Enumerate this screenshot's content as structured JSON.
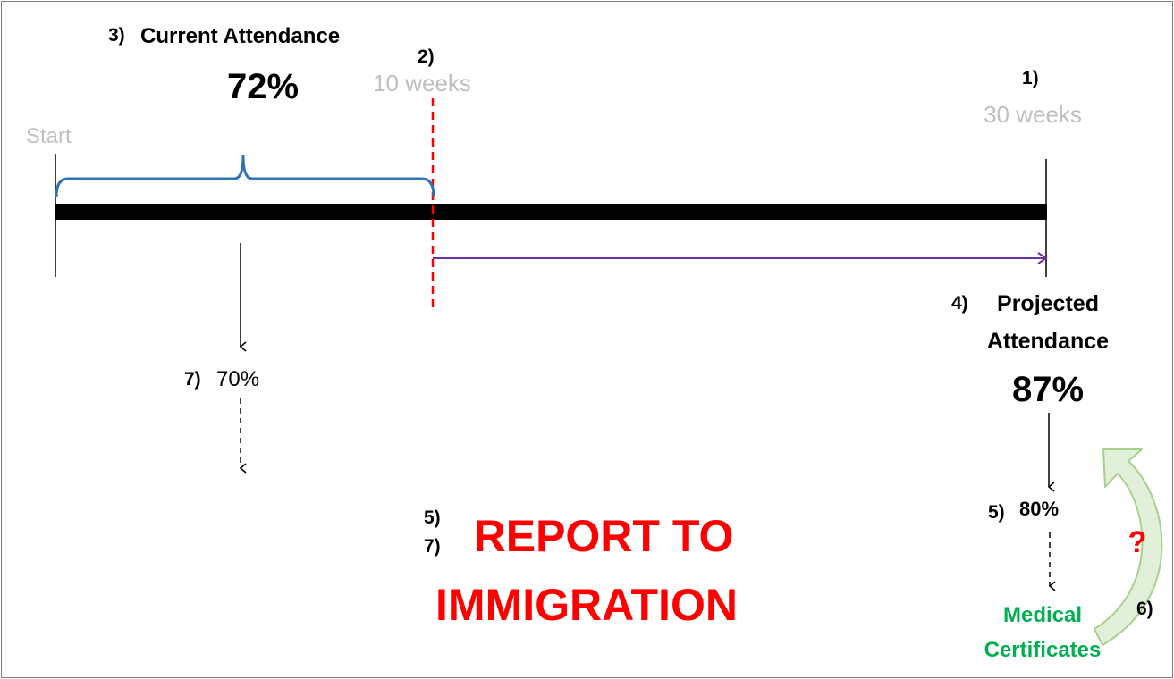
{
  "timeline": {
    "start_label": "Start",
    "week10": {
      "step": "2)",
      "label": "10 weeks"
    },
    "week30": {
      "step": "1)",
      "label": "30 weeks"
    }
  },
  "current": {
    "step": "3)",
    "label": "Current Attendance",
    "value": "72%"
  },
  "projected": {
    "step": "4)",
    "label_line1": "Projected",
    "label_line2": "Attendance",
    "value": "87%"
  },
  "threshold_left": {
    "step": "7)",
    "value": "70%"
  },
  "threshold_right": {
    "step": "5)",
    "value": "80%"
  },
  "report": {
    "steps": [
      "5)",
      "7)"
    ],
    "line1": "REPORT TO",
    "line2": "IMMIGRATION"
  },
  "medical": {
    "line1": "Medical",
    "line2": "Certificates",
    "question": "?",
    "step": "6)"
  },
  "colors": {
    "timeline": "#000000",
    "brace": "#2e75b6",
    "dashed_marker": "#ff0000",
    "projection_arrow": "#7030a0",
    "report": "#ff0000",
    "medical": "#00b050",
    "curved_arrow": "#c5e0b4",
    "muted_text": "#bfbfbf"
  }
}
